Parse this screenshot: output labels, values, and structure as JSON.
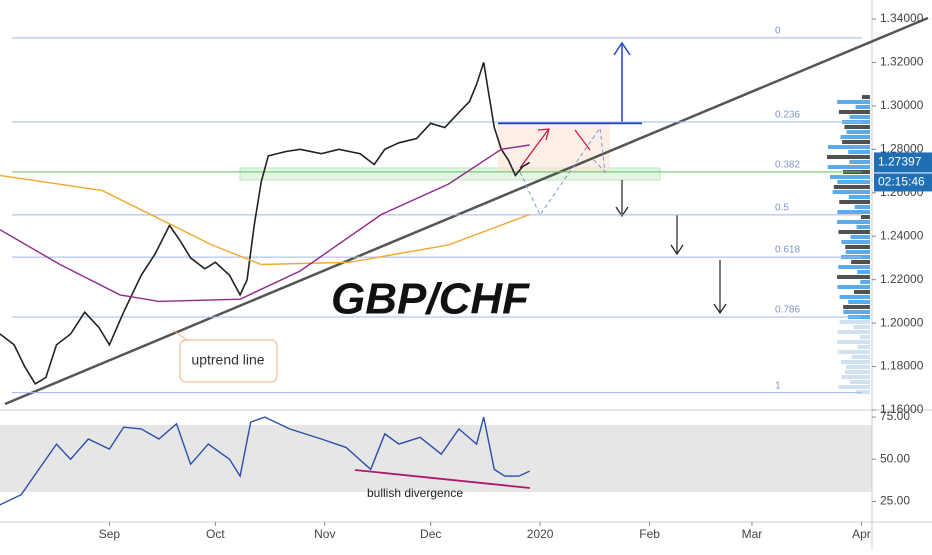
{
  "chart_data": [
    {
      "type": "line",
      "title": "GBP/CHF",
      "annotations": [
        "uptrend line"
      ],
      "xlim": [
        1,
        248
      ],
      "ylim": [
        1.16,
        1.34
      ],
      "yticks": [
        {
          "value": 1.16,
          "label": "1.16000"
        },
        {
          "value": 1.18,
          "label": "1.18000"
        },
        {
          "value": 1.2,
          "label": "1.20000"
        },
        {
          "value": 1.22,
          "label": "1.22000"
        },
        {
          "value": 1.24,
          "label": "1.24000"
        },
        {
          "value": 1.26,
          "label": "1.26000"
        },
        {
          "value": 1.28,
          "label": "1.28000"
        },
        {
          "value": 1.3,
          "label": "1.30000"
        },
        {
          "value": 1.32,
          "label": "1.32000"
        },
        {
          "value": 1.34,
          "label": "1.34000"
        }
      ],
      "fib_levels": [
        {
          "value": 1.3313,
          "label": "0"
        },
        {
          "value": 1.2926,
          "label": "0.236"
        },
        {
          "value": 1.2696,
          "label": "0.382"
        },
        {
          "value": 1.2498,
          "label": "0.5"
        },
        {
          "value": 1.2304,
          "label": "0.618"
        },
        {
          "value": 1.2028,
          "label": "0.786"
        },
        {
          "value": 1.168,
          "label": "1"
        }
      ],
      "current_price": {
        "value": 1.27397,
        "label": "1.27397"
      },
      "countdown": "02:15:46",
      "series": [
        {
          "color": "#222222",
          "x": [
            1,
            5,
            8,
            11,
            14,
            17,
            21,
            25,
            29,
            32,
            36,
            41,
            45,
            49,
            52,
            55,
            59,
            62,
            66,
            69,
            71,
            73,
            75,
            77,
            82,
            86,
            92,
            97,
            103,
            107,
            110,
            114,
            119,
            123,
            127,
            131,
            134,
            136,
            138,
            139,
            141,
            143,
            145,
            147,
            149,
            151
          ],
          "values": [
            1.195,
            1.19,
            1.18,
            1.172,
            1.175,
            1.19,
            1.195,
            1.205,
            1.198,
            1.19,
            1.205,
            1.222,
            1.232,
            1.245,
            1.238,
            1.23,
            1.225,
            1.228,
            1.222,
            1.213,
            1.22,
            1.245,
            1.265,
            1.277,
            1.279,
            1.28,
            1.278,
            1.28,
            1.278,
            1.273,
            1.28,
            1.283,
            1.285,
            1.292,
            1.29,
            1.297,
            1.302,
            1.31,
            1.32,
            1.31,
            1.29,
            1.28,
            1.275,
            1.268,
            1.272,
            1.274
          ]
        },
        {
          "color": "#f0a830",
          "x": [
            1,
            30,
            61,
            75,
            100,
            128,
            151
          ],
          "values": [
            1.268,
            1.261,
            1.236,
            1.227,
            1.228,
            1.236,
            1.25
          ]
        },
        {
          "color": "#8e2a8e",
          "x": [
            1,
            18,
            35,
            46,
            69,
            86,
            109,
            128,
            143,
            151
          ],
          "values": [
            1.243,
            1.227,
            1.213,
            1.21,
            1.211,
            1.224,
            1.25,
            1.264,
            1.28,
            1.282
          ]
        }
      ]
    },
    {
      "type": "line",
      "annotations": [
        "bullish divergence"
      ],
      "xlim": [
        1,
        248
      ],
      "ylim": [
        14,
        78
      ],
      "yticks": [
        {
          "value": 25,
          "label": "25.00"
        },
        {
          "value": 50,
          "label": "50.00"
        },
        {
          "value": 75,
          "label": "75.00"
        }
      ],
      "xticks": [
        {
          "value": 32,
          "label": "Sep"
        },
        {
          "value": 62,
          "label": "Oct"
        },
        {
          "value": 93,
          "label": "Nov"
        },
        {
          "value": 123,
          "label": "Dec"
        },
        {
          "value": 154,
          "label": "2020"
        },
        {
          "value": 185,
          "label": "Feb"
        },
        {
          "value": 214,
          "label": "Mar"
        },
        {
          "value": 245,
          "label": "Apr"
        }
      ],
      "series": [
        {
          "color": "#2a4fa8",
          "x": [
            1,
            7,
            12,
            17,
            21,
            26,
            32,
            36,
            41,
            46,
            51,
            55,
            60,
            66,
            69,
            72,
            76,
            83,
            92,
            99,
            106,
            110,
            114,
            120,
            126,
            131,
            136,
            138,
            141,
            144,
            148,
            151
          ],
          "values": [
            23,
            29,
            44,
            59,
            50,
            62,
            56,
            69,
            68,
            62,
            71,
            47,
            59,
            50,
            40,
            72,
            75,
            68,
            62,
            57,
            44,
            65,
            59,
            63,
            53,
            68,
            59,
            75,
            44,
            40,
            40,
            43
          ]
        }
      ]
    }
  ]
}
